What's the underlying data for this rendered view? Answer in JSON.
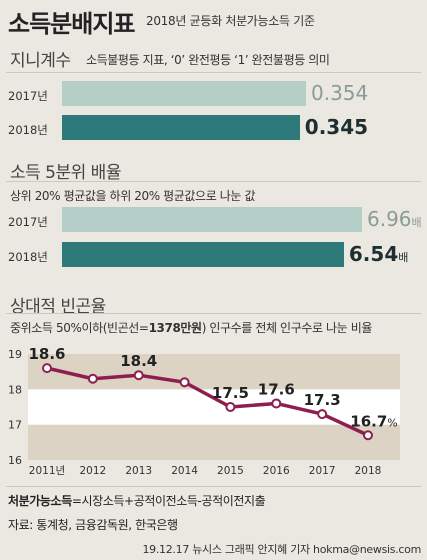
{
  "header": {
    "title": "소득분배지표",
    "subtitle": "2018년 균등화 처분가능소득 기준"
  },
  "gini": {
    "title": "지니계수",
    "desc": "소득불평등 지표, ‘0’ 완전평등 ‘1’ 완전불평등 의미"
  },
  "ratio": {
    "title": "소득 5분위 배율",
    "desc": "상위 20% 평균값을 하위 20% 평균값으로 나눈 값"
  },
  "poverty": {
    "title": "상대적 빈곤율",
    "desc_prefix": "중위소득 50%이하(빈곤선=",
    "desc_bold": "1378만원",
    "desc_suffix": ") 인구수를 전체 인구수로 나눈 비율"
  },
  "footer": {
    "formula_bold": "처분가능소득",
    "formula_rest": "=시장소득+공적이전소득-공적이전지출",
    "source": "자료: 통계청, 금융감독원, 한국은행",
    "credit": "19.12.17  뉴시스 그래픽  안지혜 기자  hokma@newsis.com"
  },
  "colors": {
    "bar_2017": "#b5cfc8",
    "bar_2018": "#2e7a7a",
    "line": "#8c1f4f",
    "band": "#ddd3c4"
  },
  "chart_data": [
    {
      "type": "bar",
      "orientation": "horizontal",
      "title": "지니계수",
      "categories": [
        "2017년",
        "2018년"
      ],
      "values": [
        0.354,
        0.345
      ],
      "value_labels": [
        "0.354",
        "0.345"
      ],
      "unit": ""
    },
    {
      "type": "bar",
      "orientation": "horizontal",
      "title": "소득 5분위 배율",
      "categories": [
        "2017년",
        "2018년"
      ],
      "values": [
        6.96,
        6.54
      ],
      "value_labels": [
        "6.96",
        "6.54"
      ],
      "unit": "배"
    },
    {
      "type": "line",
      "title": "상대적 빈곤율",
      "x": [
        "2011년",
        "2012",
        "2013",
        "2014",
        "2015",
        "2016",
        "2017",
        "2018"
      ],
      "y": [
        18.6,
        18.3,
        18.4,
        18.2,
        17.5,
        17.6,
        17.3,
        16.7
      ],
      "point_labels": [
        "18.6",
        "",
        "18.4",
        "",
        "17.5",
        "17.6",
        "17.3",
        "16.7"
      ],
      "unit": "%",
      "yticks": [
        "19",
        "18",
        "17",
        "16"
      ],
      "ylim": [
        16,
        19
      ],
      "grid": false
    }
  ]
}
